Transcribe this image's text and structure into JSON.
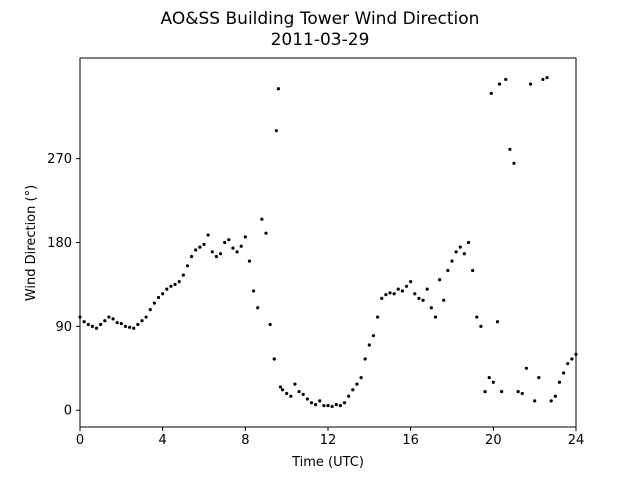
{
  "chart_data": {
    "type": "scatter",
    "title": "AO&SS Building Tower Wind Direction",
    "subtitle": "2011-03-29",
    "xlabel": "Time (UTC)",
    "ylabel": "Wind Direction (°)",
    "xlim": [
      0,
      24
    ],
    "ylim": [
      -18,
      378
    ],
    "xticks": [
      0,
      4,
      8,
      12,
      16,
      20,
      24
    ],
    "yticks": [
      0,
      90,
      180,
      270
    ],
    "grid": false,
    "legend": "none",
    "marker_color": "#000000",
    "series": [
      {
        "x": [
          0.0,
          0.2,
          0.4,
          0.6,
          0.8,
          1.0,
          1.2,
          1.4,
          1.6,
          1.8,
          2.0,
          2.2,
          2.4,
          2.6,
          2.8,
          3.0,
          3.2,
          3.4,
          3.6,
          3.8,
          4.0,
          4.2,
          4.4,
          4.6,
          4.8,
          5.0,
          5.2,
          5.4,
          5.6,
          5.8,
          6.0,
          6.2,
          6.4,
          6.6,
          6.8,
          7.0,
          7.2,
          7.4,
          7.6,
          7.8,
          8.0,
          8.2,
          8.4,
          8.6,
          8.8,
          9.0,
          9.2,
          9.4,
          9.5,
          9.6,
          9.7,
          9.8,
          10.0,
          10.2,
          10.4,
          10.6,
          10.8,
          11.0,
          11.2,
          11.4,
          11.6,
          11.8,
          12.0,
          12.2,
          12.4,
          12.6,
          12.8,
          13.0,
          13.2,
          13.4,
          13.6,
          13.8,
          14.0,
          14.2,
          14.4,
          14.6,
          14.8,
          15.0,
          15.2,
          15.4,
          15.6,
          15.8,
          16.0,
          16.2,
          16.4,
          16.6,
          16.8,
          17.0,
          17.2,
          17.4,
          17.6,
          17.8,
          18.0,
          18.2,
          18.4,
          18.6,
          18.8,
          19.0,
          19.2,
          19.4,
          19.6,
          19.8,
          19.9,
          20.0,
          20.2,
          20.3,
          20.4,
          20.6,
          20.8,
          21.0,
          21.2,
          21.4,
          21.6,
          21.8,
          22.0,
          22.2,
          22.4,
          22.6,
          22.8,
          23.0,
          23.2,
          23.4,
          23.6,
          23.8,
          24.0
        ],
        "y": [
          100,
          95,
          92,
          90,
          88,
          92,
          96,
          100,
          98,
          94,
          93,
          90,
          89,
          88,
          92,
          96,
          100,
          108,
          115,
          121,
          125,
          130,
          133,
          135,
          138,
          145,
          155,
          165,
          172,
          175,
          178,
          188,
          170,
          165,
          168,
          180,
          183,
          174,
          170,
          176,
          186,
          160,
          128,
          110,
          205,
          190,
          92,
          55,
          300,
          345,
          25,
          22,
          18,
          15,
          28,
          20,
          17,
          12,
          8,
          6,
          10,
          5,
          5,
          4,
          6,
          5,
          8,
          15,
          22,
          28,
          35,
          55,
          70,
          80,
          100,
          120,
          124,
          126,
          125,
          130,
          128,
          133,
          138,
          125,
          120,
          118,
          130,
          110,
          100,
          140,
          118,
          150,
          160,
          170,
          175,
          168,
          180,
          150,
          100,
          90,
          20,
          35,
          340,
          30,
          95,
          350,
          20,
          355,
          280,
          265,
          20,
          18,
          45,
          350,
          10,
          35,
          355,
          357,
          10,
          15,
          30,
          40,
          50,
          55,
          60
        ]
      }
    ]
  }
}
